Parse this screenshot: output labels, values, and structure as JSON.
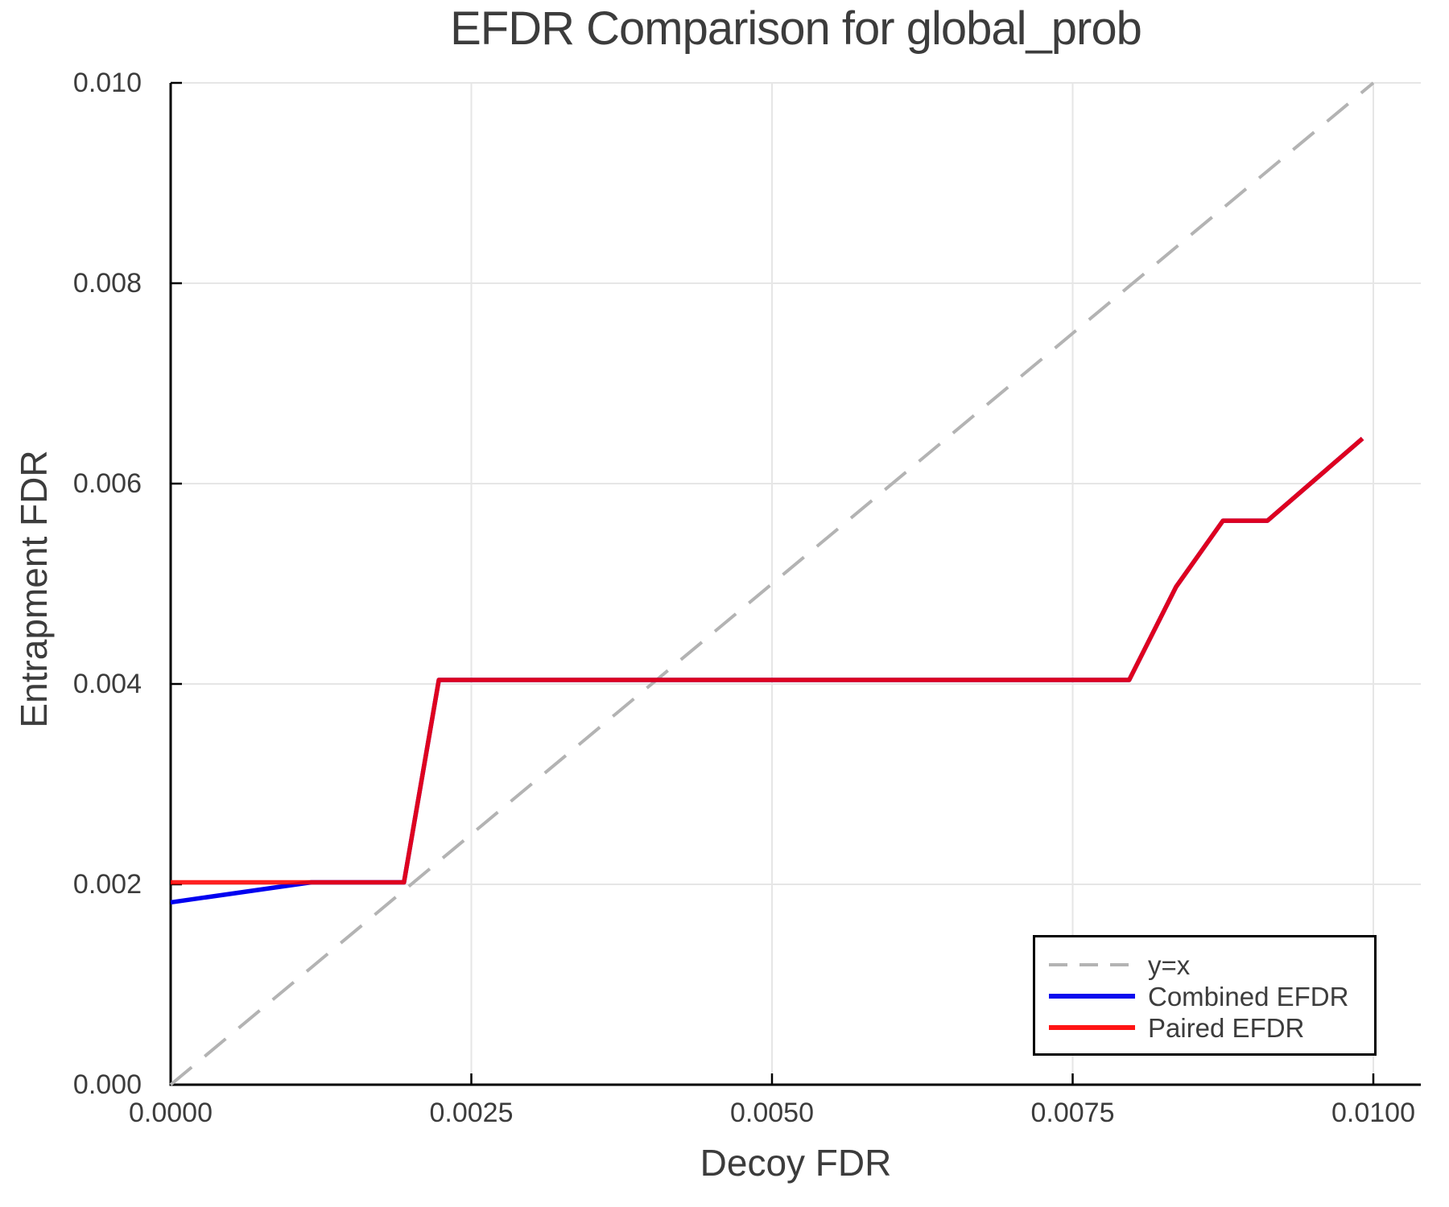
{
  "title": "EFDR Comparison for global_prob",
  "axes": {
    "x_label": "Decoy FDR",
    "y_label": "Entrapment FDR",
    "x_ticks": [
      "0.0000",
      "0.0025",
      "0.0050",
      "0.0075",
      "0.0100"
    ],
    "y_ticks": [
      "0.000",
      "0.002",
      "0.004",
      "0.006",
      "0.008",
      "0.010"
    ]
  },
  "legend": {
    "items": [
      {
        "label": "y=x",
        "style": "dashed",
        "color": "#b3b3b3"
      },
      {
        "label": "Combined EFDR",
        "style": "solid",
        "color": "#0b0bee"
      },
      {
        "label": "Paired EFDR",
        "style": "solid",
        "color": "#ff1414"
      }
    ]
  },
  "colors": {
    "text": "#3c3c3c",
    "grid": "#e6e6e6",
    "spine": "#000000",
    "diagonal": "#b3b3b3",
    "combined": "#0000f0",
    "paired": "#ff0000"
  },
  "chart_data": {
    "type": "line",
    "title": "EFDR Comparison for global_prob",
    "xlabel": "Decoy FDR",
    "ylabel": "Entrapment FDR",
    "xlim": [
      0.0,
      0.0104
    ],
    "ylim": [
      0.0,
      0.01
    ],
    "grid": true,
    "legend_position": "bottom-right",
    "x_tick_values": [
      0.0,
      0.0025,
      0.005,
      0.0075,
      0.01
    ],
    "y_tick_values": [
      0.0,
      0.002,
      0.004,
      0.006,
      0.008,
      0.01
    ],
    "series": [
      {
        "name": "y=x",
        "style": "dashed",
        "color": "#b3b3b3",
        "width": 4,
        "points": [
          [
            0.0,
            0.0
          ],
          [
            0.01,
            0.01
          ]
        ]
      },
      {
        "name": "Combined EFDR",
        "style": "solid",
        "color": "#0000f0",
        "width": 5.5,
        "points": [
          [
            0.0,
            0.00182
          ],
          [
            0.00117,
            0.00202
          ],
          [
            0.00194,
            0.00202
          ],
          [
            0.00223,
            0.00404
          ],
          [
            0.00797,
            0.00404
          ],
          [
            0.00836,
            0.00497
          ],
          [
            0.00875,
            0.00563
          ],
          [
            0.00912,
            0.00563
          ],
          [
            0.00991,
            0.00645
          ]
        ]
      },
      {
        "name": "Paired EFDR",
        "style": "solid",
        "color": "#ff0000",
        "opacity": 0.87,
        "width": 5.5,
        "points": [
          [
            0.0,
            0.00202
          ],
          [
            0.00194,
            0.00202
          ],
          [
            0.00223,
            0.00404
          ],
          [
            0.00797,
            0.00404
          ],
          [
            0.00836,
            0.00497
          ],
          [
            0.00875,
            0.00563
          ],
          [
            0.00912,
            0.00563
          ],
          [
            0.00991,
            0.00645
          ]
        ]
      }
    ]
  }
}
